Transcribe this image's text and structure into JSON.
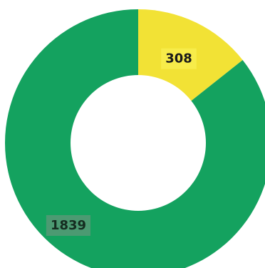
{
  "chart_data": {
    "type": "pie",
    "variant": "donut",
    "title": "",
    "slices": [
      {
        "value": 308,
        "label": "308",
        "color": "#f2e235",
        "label_bg": "#f7ec4a",
        "label_color": "#1a1a1a"
      },
      {
        "value": 1839,
        "label": "1839",
        "color": "#14a25f",
        "label_bg": "#4c9a72",
        "label_color": "#152c20"
      }
    ],
    "start_angle_deg": 0,
    "direction": "clockwise",
    "legend": "none",
    "background": "#ffffff",
    "hole_color": "#ffffff"
  }
}
